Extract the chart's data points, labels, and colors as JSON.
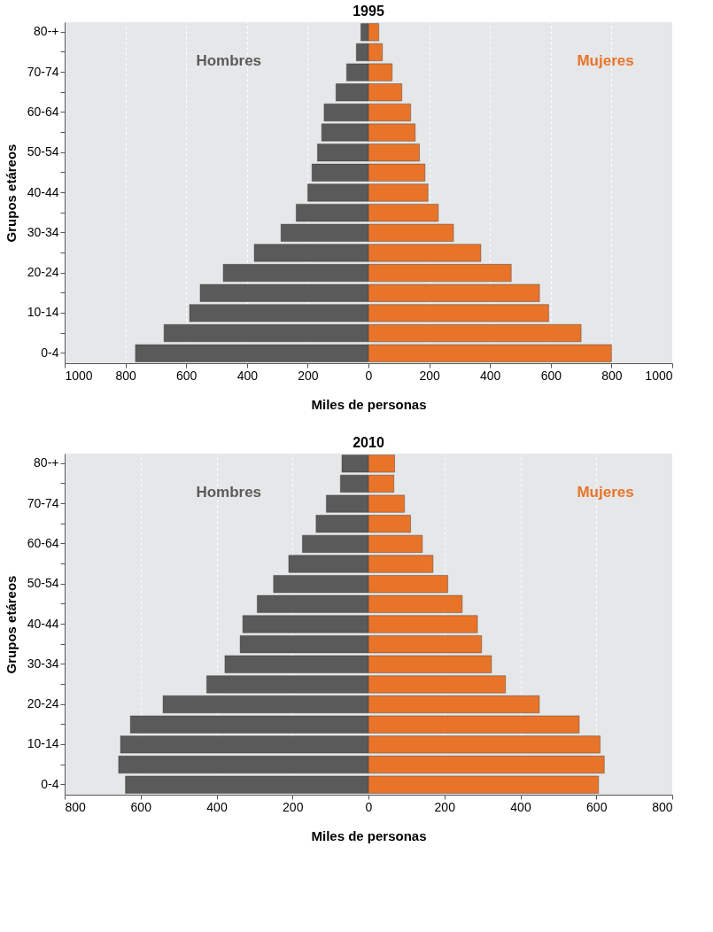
{
  "chart_data": [
    {
      "type": "bar",
      "orientation": "horizontal",
      "title": "1995",
      "xlabel": "Miles de personas",
      "ylabel": "Grupos etáreos",
      "categories": [
        "80-+",
        null,
        "70-74",
        null,
        "60-64",
        null,
        "50-54",
        null,
        "40-44",
        null,
        "30-34",
        null,
        "20-24",
        null,
        "10-14",
        null,
        "0-4"
      ],
      "series": [
        {
          "name": "Hombres",
          "color": "#5a5a5a",
          "values": [
            -25,
            -40,
            -72,
            -107,
            -146,
            -154,
            -168,
            -186,
            -200,
            -238,
            -288,
            -376,
            -478,
            -554,
            -589,
            -673,
            -767
          ]
        },
        {
          "name": "Mujeres",
          "color": "#e8742a",
          "values": [
            34,
            46,
            78,
            110,
            139,
            154,
            168,
            186,
            196,
            230,
            280,
            370,
            470,
            563,
            593,
            700,
            800
          ]
        }
      ],
      "xlim": [
        -1000,
        1000
      ],
      "xticks": [
        {
          "value": -1000,
          "label": "1000"
        },
        {
          "value": -800,
          "label": "800"
        },
        {
          "value": -600,
          "label": "600"
        },
        {
          "value": -400,
          "label": "400"
        },
        {
          "value": -200,
          "label": "200"
        },
        0,
        200,
        400,
        600,
        800,
        1000
      ],
      "grid": "x",
      "legend": false,
      "stacked": true
    },
    {
      "type": "bar",
      "orientation": "horizontal",
      "title": "2010",
      "xlabel": "Miles de personas",
      "ylabel": "Grupos etáreos",
      "categories": [
        "80-+",
        null,
        "70-74",
        null,
        "60-64",
        null,
        "50-54",
        null,
        "40-44",
        null,
        "30-34",
        null,
        "20-24",
        null,
        "10-14",
        null,
        "0-4"
      ],
      "series": [
        {
          "name": "Hombres",
          "color": "#5a5a5a",
          "values": [
            -70,
            -74,
            -111,
            -138,
            -174,
            -210,
            -250,
            -293,
            -331,
            -338,
            -378,
            -426,
            -541,
            -627,
            -653,
            -658,
            -640
          ]
        },
        {
          "name": "Mujeres",
          "color": "#e8742a",
          "values": [
            69,
            67,
            95,
            111,
            142,
            170,
            209,
            247,
            287,
            298,
            324,
            361,
            450,
            555,
            610,
            621,
            606
          ]
        }
      ],
      "xlim": [
        -800,
        800
      ],
      "xticks": [
        {
          "value": -800,
          "label": "800"
        },
        {
          "value": -600,
          "label": "600"
        },
        {
          "value": -400,
          "label": "400"
        },
        {
          "value": -200,
          "label": "200"
        },
        0,
        200,
        400,
        600,
        800
      ],
      "grid": "x",
      "legend": false,
      "stacked": true
    }
  ]
}
